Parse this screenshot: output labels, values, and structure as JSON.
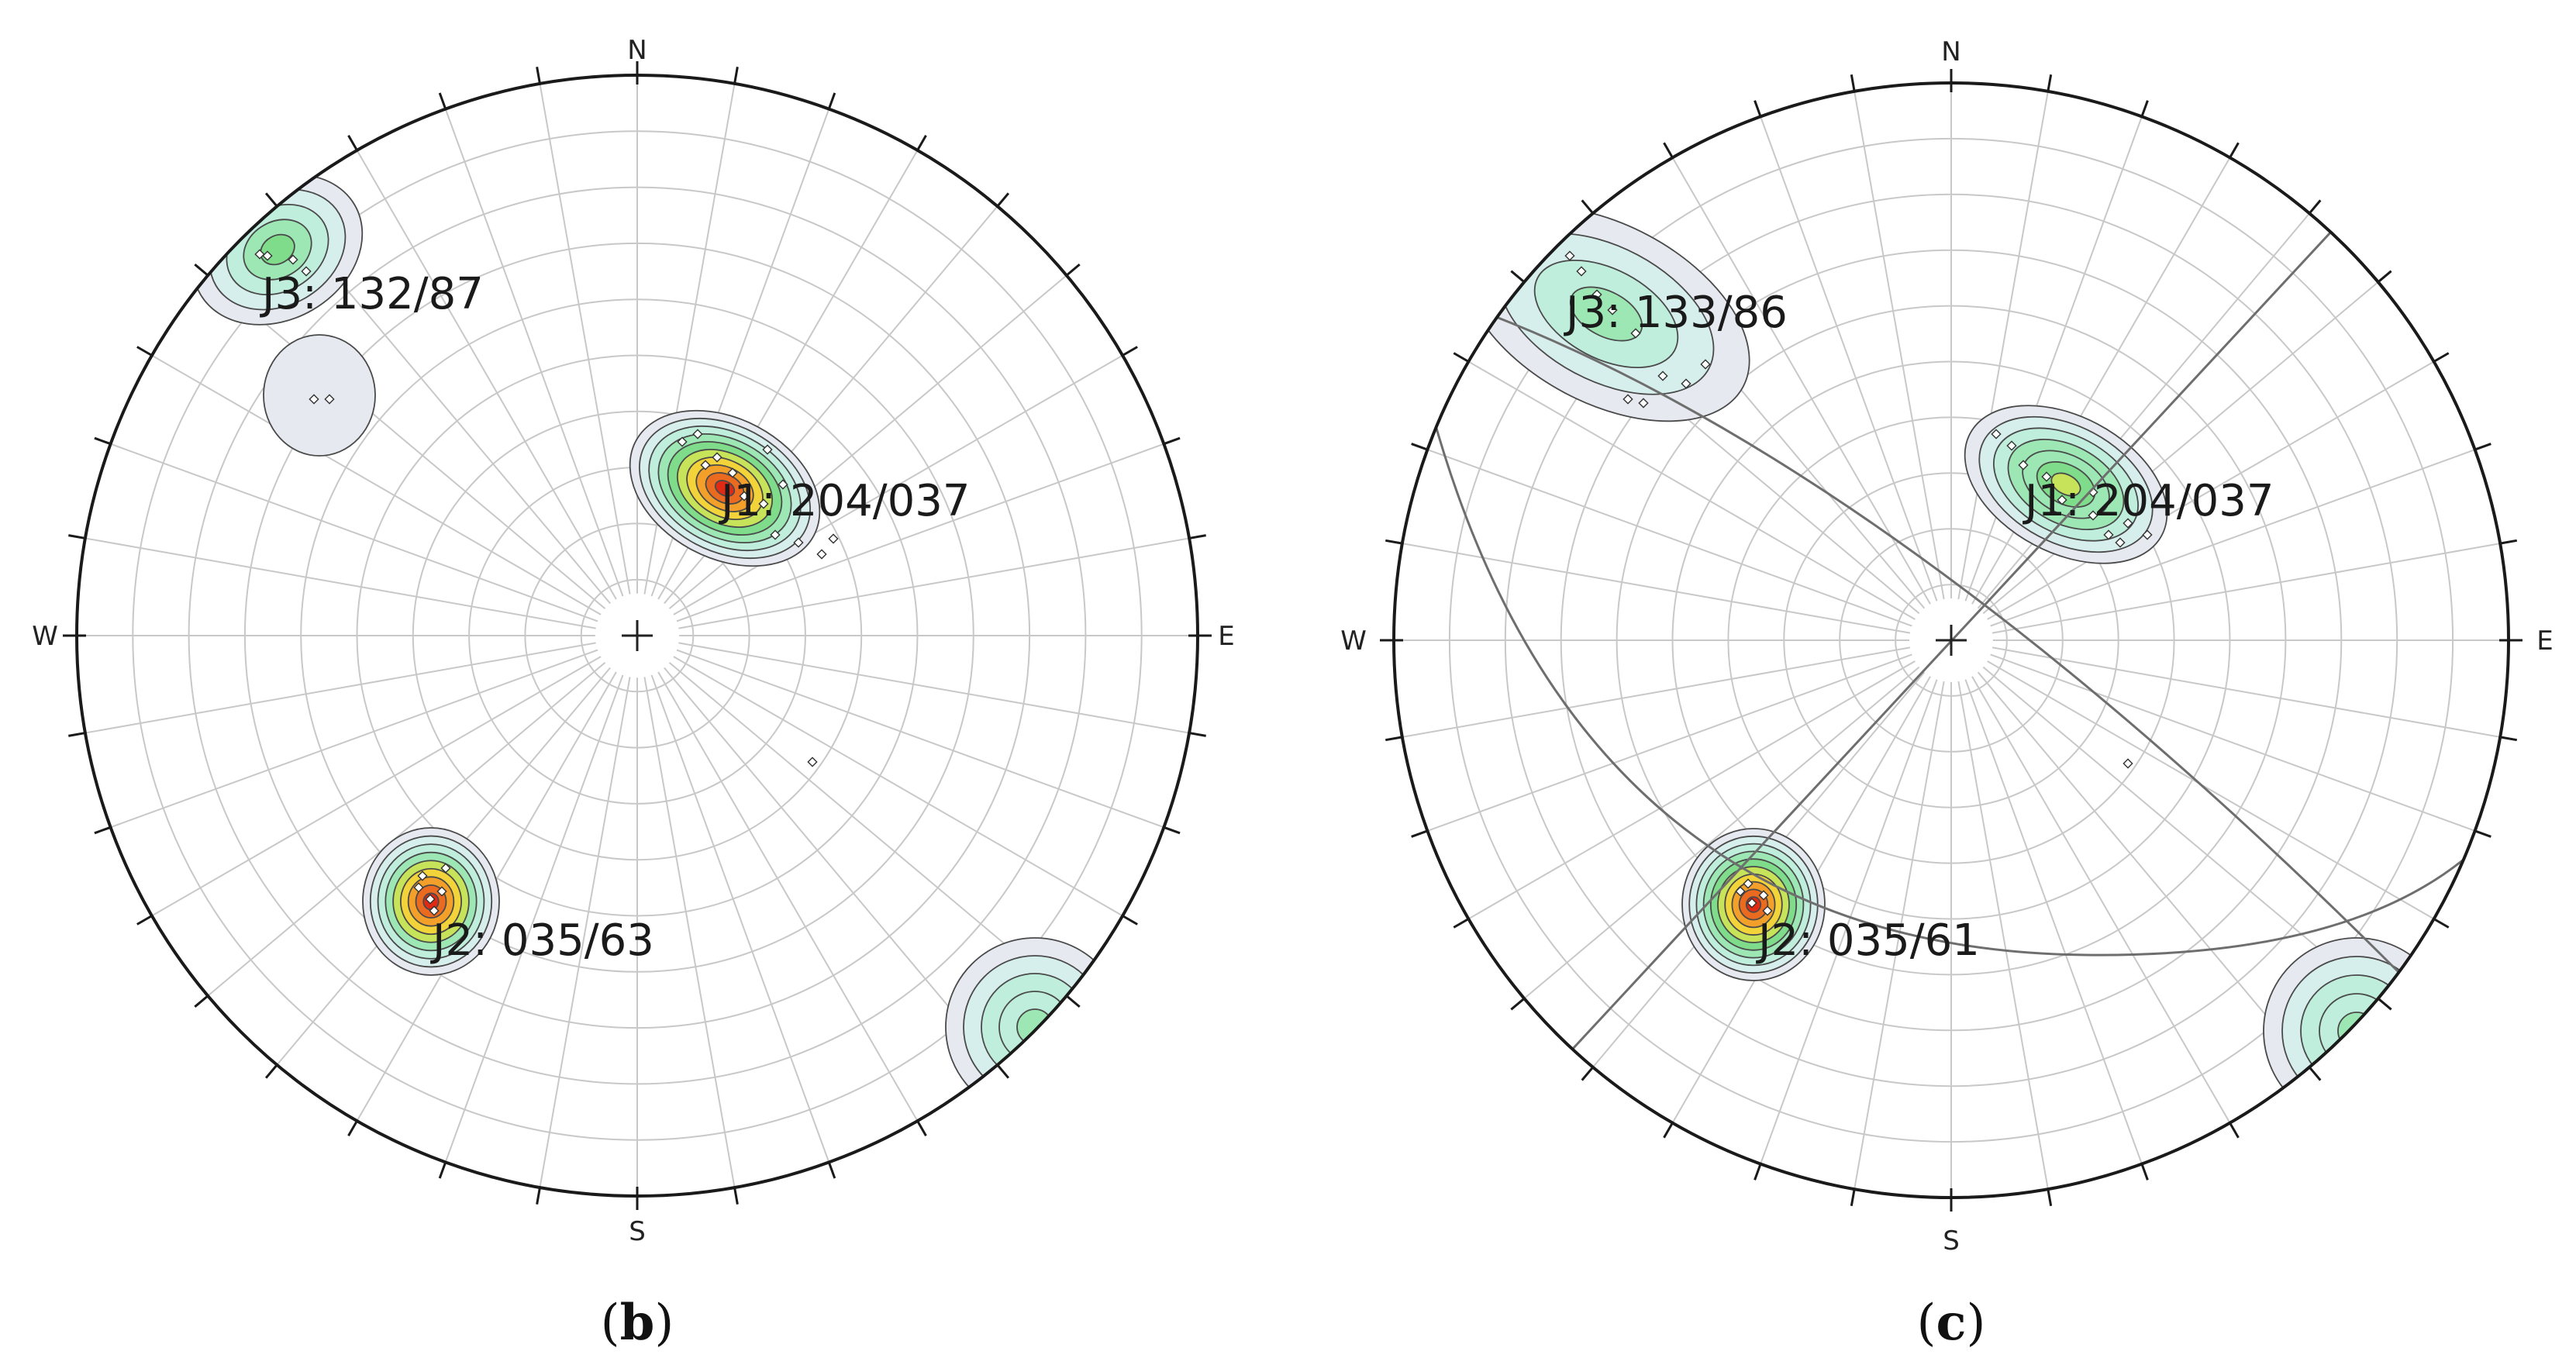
{
  "compass": {
    "north": "N",
    "south": "S",
    "east": "E",
    "west": "W"
  },
  "colors": {
    "outline": "#1a1a1a",
    "grid": "#c8c8c8",
    "contour_line": "#4a4a4a",
    "great_circle": "#6e6e6e",
    "density_levels": [
      "#e6eaf0",
      "#d7efec",
      "#bfeedd",
      "#9de7b4",
      "#7edc8a",
      "#c7e35a",
      "#f2d33a",
      "#f2a02a",
      "#ea6a1f",
      "#e02a14"
    ]
  },
  "panels": [
    {
      "id": "b",
      "label": {
        "open": "(",
        "letter": "b",
        "close": ")"
      },
      "sets": [
        {
          "label": "J1: 204/037",
          "peak_level": 9
        },
        {
          "label": "J2: 035/63",
          "peak_level": 9
        },
        {
          "label": "J3: 132/87",
          "peak_level": 4
        }
      ],
      "great_circles": []
    },
    {
      "id": "c",
      "label": {
        "open": "(",
        "letter": "c",
        "close": ")"
      },
      "sets": [
        {
          "label": "J1: 204/037",
          "peak_level": 5
        },
        {
          "label": "J2: 035/61",
          "peak_level": 9
        },
        {
          "label": "J3: 133/86",
          "peak_level": 3
        }
      ],
      "great_circles": [
        "plane-J1",
        "plane-J2",
        "plane-J3"
      ]
    }
  ]
}
